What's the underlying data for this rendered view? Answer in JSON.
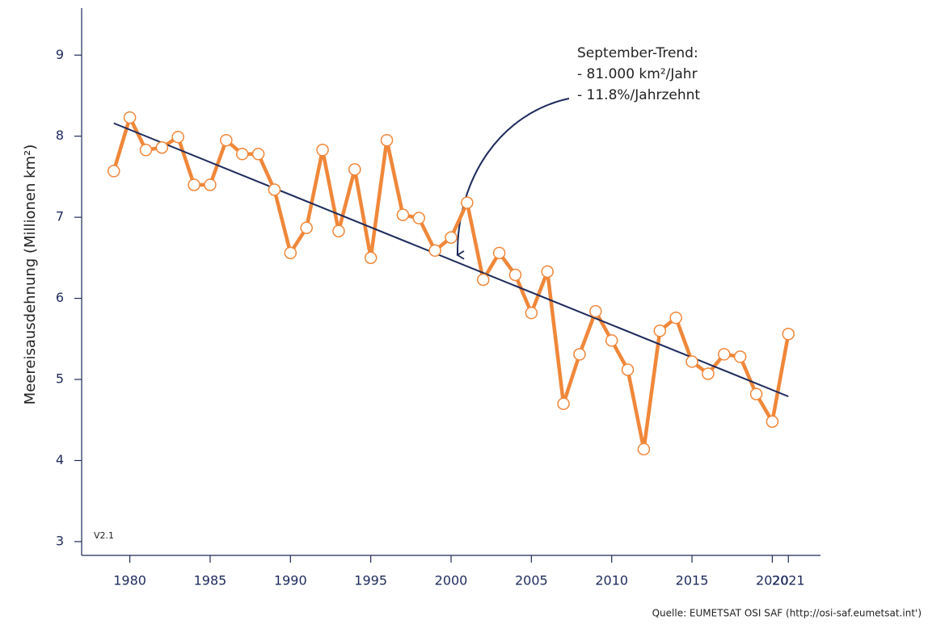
{
  "chart_data": {
    "type": "line",
    "y_label": "Meereisausdehnung (Millionen km²)",
    "x": [
      1979,
      1980,
      1981,
      1982,
      1983,
      1984,
      1985,
      1986,
      1987,
      1988,
      1989,
      1990,
      1991,
      1992,
      1993,
      1994,
      1995,
      1996,
      1997,
      1998,
      1999,
      2000,
      2001,
      2002,
      2003,
      2004,
      2005,
      2006,
      2007,
      2008,
      2009,
      2010,
      2011,
      2012,
      2013,
      2014,
      2015,
      2016,
      2017,
      2018,
      2019,
      2020,
      2021
    ],
    "values": [
      7.57,
      8.23,
      7.83,
      7.86,
      7.99,
      7.4,
      7.4,
      7.95,
      7.78,
      7.78,
      7.34,
      6.56,
      6.87,
      7.83,
      6.83,
      7.59,
      6.5,
      7.95,
      7.03,
      6.99,
      6.59,
      6.75,
      7.18,
      6.23,
      6.56,
      6.29,
      5.82,
      6.33,
      4.7,
      5.31,
      5.84,
      5.48,
      5.12,
      4.14,
      5.6,
      5.76,
      5.22,
      5.07,
      5.31,
      5.28,
      4.82,
      4.48,
      5.56
    ],
    "color": "#f0873a",
    "trend": {
      "x": [
        1979,
        2021
      ],
      "values": [
        8.16,
        4.79
      ],
      "color": "#1d2a5c"
    },
    "annotation": [
      "September-Trend:",
      "- 81.000 km²/Jahr",
      "- 11.8%/Jahrzehnt"
    ],
    "version": "V2.1",
    "source": "Quelle: EUMETSAT OSI SAF (http://osi-saf.eumetsat.int')",
    "xlim": [
      1977,
      2023
    ],
    "ylim": [
      2.83,
      9.58
    ],
    "xticks": [
      1980,
      1985,
      1990,
      1995,
      2000,
      2005,
      2010,
      2015,
      2020,
      2021
    ],
    "yticks": [
      3,
      4,
      5,
      6,
      7,
      8,
      9
    ]
  }
}
